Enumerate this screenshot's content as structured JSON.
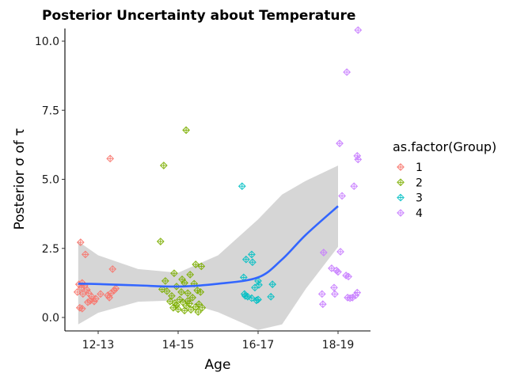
{
  "chart_data": {
    "type": "scatter",
    "title": "Posterior Uncertainty about Temperature",
    "xlabel": "Age",
    "ylabel": "Posterior σ of τ",
    "categories": [
      "12-13",
      "14-15",
      "16-17",
      "18-19"
    ],
    "ylim": [
      -0.4,
      10.5
    ],
    "yticks": [
      0.0,
      2.5,
      5.0,
      7.5,
      10.0
    ],
    "ytick_labels": [
      "0.0",
      "2.5",
      "5.0",
      "7.5",
      "10.0"
    ],
    "grid": false,
    "legend": {
      "title": "as.factor(Group)",
      "placement": "right",
      "entries": [
        "1",
        "2",
        "3",
        "4"
      ]
    },
    "series": [
      {
        "name": "1",
        "color": "#F8766D",
        "points": [
          [
            0.78,
            2.72
          ],
          [
            0.84,
            2.28
          ],
          [
            0.8,
            1.25
          ],
          [
            0.76,
            1.2
          ],
          [
            0.83,
            1.15
          ],
          [
            0.79,
            1.08
          ],
          [
            0.86,
            1.0
          ],
          [
            0.74,
            0.92
          ],
          [
            0.88,
            0.88
          ],
          [
            0.81,
            0.85
          ],
          [
            0.92,
            0.75
          ],
          [
            0.97,
            0.68
          ],
          [
            0.9,
            0.6
          ],
          [
            0.87,
            0.55
          ],
          [
            0.95,
            0.58
          ],
          [
            0.77,
            0.35
          ],
          [
            0.8,
            0.32
          ],
          [
            1.15,
            5.75
          ],
          [
            1.18,
            1.75
          ],
          [
            1.22,
            1.05
          ],
          [
            1.2,
            0.98
          ],
          [
            1.16,
            0.88
          ],
          [
            1.12,
            0.8
          ],
          [
            1.14,
            0.72
          ],
          [
            1.03,
            0.85
          ]
        ]
      },
      {
        "name": "2",
        "color": "#7CAE00",
        "points": [
          [
            2.1,
            6.78
          ],
          [
            1.82,
            5.5
          ],
          [
            1.78,
            2.75
          ],
          [
            2.22,
            1.92
          ],
          [
            2.29,
            1.85
          ],
          [
            2.15,
            1.55
          ],
          [
            1.95,
            1.6
          ],
          [
            2.05,
            1.38
          ],
          [
            1.84,
            1.32
          ],
          [
            2.2,
            1.22
          ],
          [
            2.08,
            1.25
          ],
          [
            1.98,
            1.12
          ],
          [
            1.8,
            1.02
          ],
          [
            1.86,
            0.95
          ],
          [
            2.24,
            0.98
          ],
          [
            2.28,
            0.92
          ],
          [
            2.04,
            0.92
          ],
          [
            2.12,
            0.88
          ],
          [
            1.92,
            0.78
          ],
          [
            2.18,
            0.72
          ],
          [
            2.02,
            0.65
          ],
          [
            1.9,
            0.58
          ],
          [
            2.06,
            0.55
          ],
          [
            1.96,
            0.52
          ],
          [
            2.14,
            0.5
          ],
          [
            2.26,
            0.48
          ],
          [
            1.98,
            0.45
          ],
          [
            2.1,
            0.42
          ],
          [
            2.22,
            0.38
          ],
          [
            2.3,
            0.35
          ],
          [
            2.0,
            0.3
          ],
          [
            2.16,
            0.28
          ],
          [
            2.08,
            0.25
          ],
          [
            2.25,
            0.2
          ],
          [
            1.94,
            0.35
          ],
          [
            2.12,
            0.6
          ]
        ]
      },
      {
        "name": "3",
        "color": "#00BFC4",
        "points": [
          [
            2.8,
            4.75
          ],
          [
            2.92,
            2.28
          ],
          [
            2.85,
            2.1
          ],
          [
            2.93,
            2.0
          ],
          [
            3.0,
            1.32
          ],
          [
            3.18,
            1.2
          ],
          [
            2.82,
            1.45
          ],
          [
            2.96,
            1.08
          ],
          [
            2.83,
            0.85
          ],
          [
            2.87,
            0.75
          ],
          [
            2.92,
            0.7
          ],
          [
            3.0,
            0.65
          ],
          [
            2.98,
            0.62
          ],
          [
            3.16,
            0.75
          ],
          [
            3.01,
            1.18
          ],
          [
            2.84,
            0.78
          ]
        ]
      },
      {
        "name": "4",
        "color": "#C77CFF",
        "points": [
          [
            4.25,
            10.4
          ],
          [
            4.11,
            8.88
          ],
          [
            4.02,
            6.3
          ],
          [
            4.24,
            5.85
          ],
          [
            4.25,
            5.72
          ],
          [
            4.2,
            4.75
          ],
          [
            4.05,
            4.4
          ],
          [
            3.82,
            2.35
          ],
          [
            4.03,
            2.38
          ],
          [
            3.92,
            1.78
          ],
          [
            3.98,
            1.7
          ],
          [
            4.0,
            1.65
          ],
          [
            4.1,
            1.52
          ],
          [
            4.13,
            1.48
          ],
          [
            3.95,
            1.08
          ],
          [
            3.8,
            0.85
          ],
          [
            3.96,
            0.85
          ],
          [
            4.24,
            0.9
          ],
          [
            4.22,
            0.8
          ],
          [
            4.12,
            0.72
          ],
          [
            4.15,
            0.7
          ],
          [
            4.18,
            0.72
          ],
          [
            3.81,
            0.48
          ]
        ]
      }
    ],
    "smooth": {
      "color": "#3366FF",
      "band_color": "#cccccc",
      "x": [
        0.75,
        1.0,
        1.5,
        2.0,
        2.5,
        3.0,
        3.3,
        3.6,
        4.0
      ],
      "y": [
        1.22,
        1.21,
        1.16,
        1.12,
        1.22,
        1.45,
        2.1,
        3.0,
        4.03
      ],
      "upper": [
        2.75,
        2.25,
        1.75,
        1.62,
        2.25,
        3.55,
        4.45,
        4.95,
        5.5
      ],
      "lower": [
        -0.25,
        0.17,
        0.57,
        0.62,
        0.19,
        -0.45,
        -0.25,
        1.05,
        2.56
      ]
    }
  }
}
